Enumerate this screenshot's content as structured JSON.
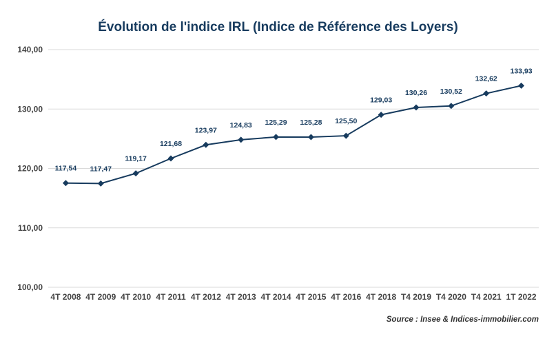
{
  "chart_data": {
    "type": "line",
    "title": "Évolution de l'indice IRL (Indice de Référence des Loyers)",
    "xlabel": "",
    "ylabel": "",
    "categories": [
      "4T 2008",
      "4T 2009",
      "4T 2010",
      "4T 2011",
      "4T 2012",
      "4T 2013",
      "4T 2014",
      "4T 2015",
      "4T 2016",
      "4T 2018",
      "T4 2019",
      "T4 2020",
      "T4 2021",
      "1T 2022"
    ],
    "series": [
      {
        "values": [
          117.54,
          117.47,
          119.17,
          121.68,
          123.97,
          124.83,
          125.29,
          125.28,
          125.5,
          129.03,
          130.26,
          130.52,
          132.62,
          133.93
        ],
        "labels": [
          "117,54",
          "117,47",
          "119,17",
          "121,68",
          "123,97",
          "124,83",
          "125,29",
          "125,28",
          "125,50",
          "129,03",
          "130,26",
          "130,52",
          "132,62",
          "133,93"
        ],
        "color": "#173b5e",
        "marker": "diamond"
      }
    ],
    "ylim": [
      100,
      140
    ],
    "yticks": [
      100,
      110,
      120,
      130,
      140
    ],
    "ytick_labels": [
      "100,00",
      "110,00",
      "120,00",
      "130,00",
      "140,00"
    ],
    "grid": true,
    "legend": "none",
    "source": "Source : Insee & Indices-immobilier.com"
  }
}
